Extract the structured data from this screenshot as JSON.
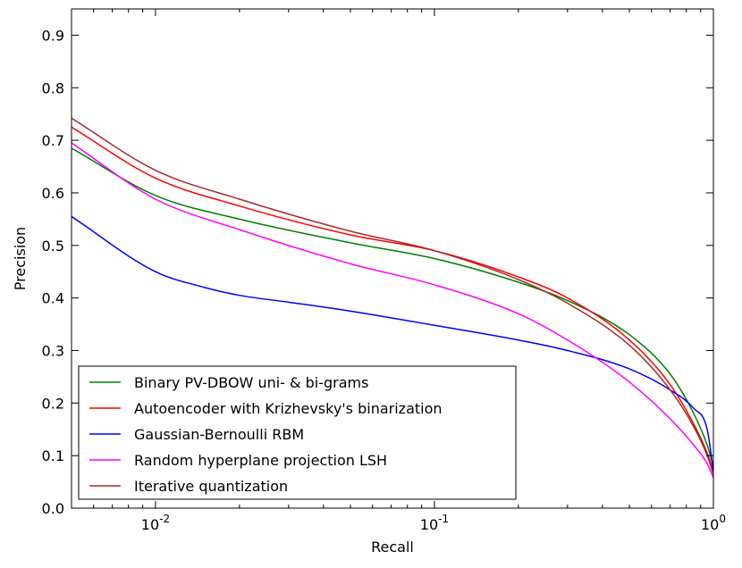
{
  "chart_data": {
    "type": "line",
    "xlabel": "Recall",
    "ylabel": "Precision",
    "xscale": "log",
    "xlim": [
      0.005,
      1.0
    ],
    "ylim": [
      0.0,
      0.95
    ],
    "xticks": [
      {
        "value": 0.01,
        "base": "10",
        "exp": "-2"
      },
      {
        "value": 0.1,
        "base": "10",
        "exp": "-1"
      },
      {
        "value": 1.0,
        "base": "10",
        "exp": "0"
      }
    ],
    "yticks": [
      {
        "value": 0.0,
        "label": "0.0"
      },
      {
        "value": 0.1,
        "label": "0.1"
      },
      {
        "value": 0.2,
        "label": "0.2"
      },
      {
        "value": 0.3,
        "label": "0.3"
      },
      {
        "value": 0.4,
        "label": "0.4"
      },
      {
        "value": 0.5,
        "label": "0.5"
      },
      {
        "value": 0.6,
        "label": "0.6"
      },
      {
        "value": 0.7,
        "label": "0.7"
      },
      {
        "value": 0.8,
        "label": "0.8"
      },
      {
        "value": 0.9,
        "label": "0.9"
      }
    ],
    "grid": false,
    "legend_position": "lower-left",
    "series": [
      {
        "name": "Binary PV-DBOW uni- & bi-grams",
        "color": "#008000",
        "x": [
          0.005,
          0.01,
          0.02,
          0.05,
          0.1,
          0.2,
          0.3,
          0.5,
          0.7,
          0.85,
          0.95,
          1.0
        ],
        "y": [
          0.685,
          0.595,
          0.55,
          0.505,
          0.475,
          0.43,
          0.395,
          0.33,
          0.255,
          0.18,
          0.12,
          0.08
        ]
      },
      {
        "name": "Autoencoder with Krizhevsky's binarization",
        "color": "#ff0000",
        "x": [
          0.005,
          0.01,
          0.02,
          0.05,
          0.1,
          0.2,
          0.3,
          0.5,
          0.7,
          0.85,
          0.95,
          1.0
        ],
        "y": [
          0.725,
          0.628,
          0.575,
          0.52,
          0.49,
          0.44,
          0.4,
          0.32,
          0.235,
          0.16,
          0.105,
          0.07
        ]
      },
      {
        "name": "Gaussian-Bernoulli RBM",
        "color": "#0000ff",
        "x": [
          0.005,
          0.01,
          0.015,
          0.02,
          0.03,
          0.05,
          0.1,
          0.2,
          0.3,
          0.5,
          0.7,
          0.85,
          0.95,
          1.0
        ],
        "y": [
          0.555,
          0.45,
          0.42,
          0.405,
          0.392,
          0.375,
          0.348,
          0.32,
          0.3,
          0.265,
          0.225,
          0.19,
          0.15,
          0.07
        ]
      },
      {
        "name": "Random hyperplane projection LSH",
        "color": "#ff00ff",
        "x": [
          0.005,
          0.01,
          0.02,
          0.05,
          0.1,
          0.2,
          0.3,
          0.5,
          0.7,
          0.85,
          0.95,
          1.0
        ],
        "y": [
          0.695,
          0.588,
          0.53,
          0.465,
          0.425,
          0.37,
          0.32,
          0.24,
          0.17,
          0.12,
          0.085,
          0.058
        ]
      },
      {
        "name": "Iterative quantization",
        "color": "#a52a2a",
        "x": [
          0.005,
          0.01,
          0.02,
          0.05,
          0.1,
          0.2,
          0.3,
          0.5,
          0.7,
          0.85,
          0.95,
          1.0
        ],
        "y": [
          0.742,
          0.643,
          0.588,
          0.527,
          0.49,
          0.435,
          0.39,
          0.31,
          0.225,
          0.155,
          0.1,
          0.065
        ]
      }
    ]
  }
}
